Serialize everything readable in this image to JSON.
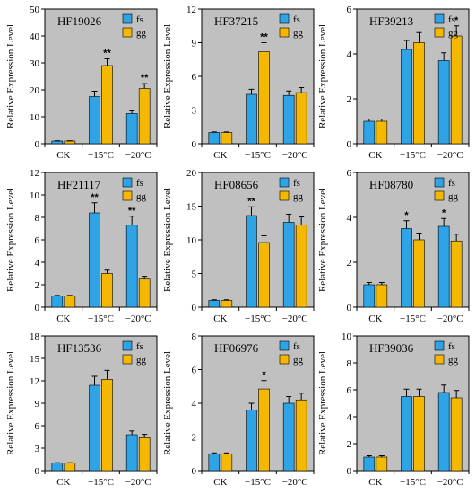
{
  "figure": {
    "ylabel": "Relative Expression Level",
    "categories": [
      "CK",
      "−15°C",
      "−20°C"
    ],
    "legend": [
      "fs",
      "gg"
    ],
    "colors": {
      "fs": "#2ea3e6",
      "gg": "#f5b800",
      "plot_bg": "#c0c0c0",
      "axis": "#000000"
    }
  },
  "chart_data": [
    {
      "type": "bar",
      "title": "HF19026",
      "categories": [
        "CK",
        "−15°C",
        "−20°C"
      ],
      "series": [
        {
          "name": "fs",
          "values": [
            1,
            17.5,
            11.2
          ],
          "errors": [
            0.1,
            2.0,
            1.0
          ]
        },
        {
          "name": "gg",
          "values": [
            1,
            29.0,
            20.5
          ],
          "errors": [
            0.1,
            2.5,
            1.8
          ]
        }
      ],
      "significance": [
        {
          "category": 1,
          "series": 1,
          "mark": "**"
        },
        {
          "category": 2,
          "series": 1,
          "mark": "**"
        }
      ],
      "ylim": [
        0,
        50
      ],
      "yticks": [
        0,
        10,
        20,
        30,
        40,
        50
      ],
      "ylabel": "Relative Expression Level",
      "legend_position": "top-right"
    },
    {
      "type": "bar",
      "title": "HF37215",
      "categories": [
        "CK",
        "−15°C",
        "−20°C"
      ],
      "series": [
        {
          "name": "fs",
          "values": [
            1,
            4.4,
            4.3
          ],
          "errors": [
            0.05,
            0.45,
            0.4
          ]
        },
        {
          "name": "gg",
          "values": [
            1,
            8.2,
            4.55
          ],
          "errors": [
            0.05,
            0.8,
            0.45
          ]
        }
      ],
      "significance": [
        {
          "category": 1,
          "series": 1,
          "mark": "**"
        }
      ],
      "ylim": [
        0,
        12
      ],
      "yticks": [
        0,
        3,
        6,
        9,
        12
      ],
      "ylabel": "Relative Expression Level",
      "legend_position": "top-right"
    },
    {
      "type": "bar",
      "title": "HF39213",
      "categories": [
        "CK",
        "−15°C",
        "−20°C"
      ],
      "series": [
        {
          "name": "fs",
          "values": [
            1,
            4.2,
            3.7
          ],
          "errors": [
            0.1,
            0.4,
            0.35
          ]
        },
        {
          "name": "gg",
          "values": [
            1,
            4.5,
            4.8
          ],
          "errors": [
            0.1,
            0.45,
            0.45
          ]
        }
      ],
      "significance": [
        {
          "category": 2,
          "series": 1,
          "mark": "*"
        }
      ],
      "ylim": [
        0,
        6
      ],
      "yticks": [
        0,
        2,
        4,
        6
      ],
      "ylabel": "Relative Expression Level",
      "legend_position": "top-right"
    },
    {
      "type": "bar",
      "title": "HF21117",
      "categories": [
        "CK",
        "−15°C",
        "−20°C"
      ],
      "series": [
        {
          "name": "fs",
          "values": [
            1,
            8.4,
            7.3
          ],
          "errors": [
            0.05,
            0.9,
            0.8
          ]
        },
        {
          "name": "gg",
          "values": [
            1,
            3.0,
            2.5
          ],
          "errors": [
            0.05,
            0.3,
            0.25
          ]
        }
      ],
      "significance": [
        {
          "category": 1,
          "series": 0,
          "mark": "**"
        },
        {
          "category": 2,
          "series": 0,
          "mark": "**"
        }
      ],
      "ylim": [
        0,
        12
      ],
      "yticks": [
        0,
        2,
        4,
        6,
        8,
        10,
        12
      ],
      "ylabel": "Relative Expression Level",
      "legend_position": "top-right"
    },
    {
      "type": "bar",
      "title": "HF08656",
      "categories": [
        "CK",
        "−15°C",
        "−20°C"
      ],
      "series": [
        {
          "name": "fs",
          "values": [
            1,
            13.6,
            12.6
          ],
          "errors": [
            0.1,
            1.3,
            1.2
          ]
        },
        {
          "name": "gg",
          "values": [
            1,
            9.6,
            12.2
          ],
          "errors": [
            0.1,
            1.0,
            1.2
          ]
        }
      ],
      "significance": [
        {
          "category": 1,
          "series": 0,
          "mark": "**"
        }
      ],
      "ylim": [
        0,
        20
      ],
      "yticks": [
        0,
        5,
        10,
        15,
        20
      ],
      "ylabel": "Relative Expression Level",
      "legend_position": "top-right"
    },
    {
      "type": "bar",
      "title": "HF08780",
      "categories": [
        "CK",
        "−15°C",
        "−20°C"
      ],
      "series": [
        {
          "name": "fs",
          "values": [
            1,
            3.5,
            3.6
          ],
          "errors": [
            0.1,
            0.35,
            0.35
          ]
        },
        {
          "name": "gg",
          "values": [
            1,
            3.0,
            2.95
          ],
          "errors": [
            0.1,
            0.3,
            0.3
          ]
        }
      ],
      "significance": [
        {
          "category": 1,
          "series": 0,
          "mark": "*"
        },
        {
          "category": 2,
          "series": 0,
          "mark": "*"
        }
      ],
      "ylim": [
        0,
        6
      ],
      "yticks": [
        0,
        2,
        4,
        6
      ],
      "ylabel": "Relative Expression Level",
      "legend_position": "top-right"
    },
    {
      "type": "bar",
      "title": "HF13536",
      "categories": [
        "CK",
        "−15°C",
        "−20°C"
      ],
      "series": [
        {
          "name": "fs",
          "values": [
            1,
            11.4,
            4.8
          ],
          "errors": [
            0.05,
            1.2,
            0.5
          ]
        },
        {
          "name": "gg",
          "values": [
            1,
            12.2,
            4.4
          ],
          "errors": [
            0.05,
            1.2,
            0.45
          ]
        }
      ],
      "significance": [],
      "ylim": [
        0,
        18
      ],
      "yticks": [
        0,
        3,
        6,
        9,
        12,
        15,
        18
      ],
      "ylabel": "Relative Expression Level",
      "legend_position": "top-right"
    },
    {
      "type": "bar",
      "title": "HF06976",
      "categories": [
        "CK",
        "−15°C",
        "−20°C"
      ],
      "series": [
        {
          "name": "fs",
          "values": [
            1,
            3.6,
            4.0
          ],
          "errors": [
            0.05,
            0.4,
            0.4
          ]
        },
        {
          "name": "gg",
          "values": [
            1,
            4.85,
            4.2
          ],
          "errors": [
            0.05,
            0.5,
            0.4
          ]
        }
      ],
      "significance": [
        {
          "category": 1,
          "series": 1,
          "mark": "*"
        }
      ],
      "ylim": [
        0,
        8
      ],
      "yticks": [
        0,
        2,
        4,
        6,
        8
      ],
      "ylabel": "Relative Expression Level",
      "legend_position": "top-right"
    },
    {
      "type": "bar",
      "title": "HF39036",
      "categories": [
        "CK",
        "−15°C",
        "−20°C"
      ],
      "series": [
        {
          "name": "fs",
          "values": [
            1,
            5.5,
            5.8
          ],
          "errors": [
            0.1,
            0.55,
            0.55
          ]
        },
        {
          "name": "gg",
          "values": [
            1,
            5.5,
            5.4
          ],
          "errors": [
            0.1,
            0.55,
            0.55
          ]
        }
      ],
      "significance": [],
      "ylim": [
        0,
        10
      ],
      "yticks": [
        0,
        2,
        4,
        6,
        8,
        10
      ],
      "ylabel": "Relative Expression Level",
      "legend_position": "top-right"
    }
  ]
}
